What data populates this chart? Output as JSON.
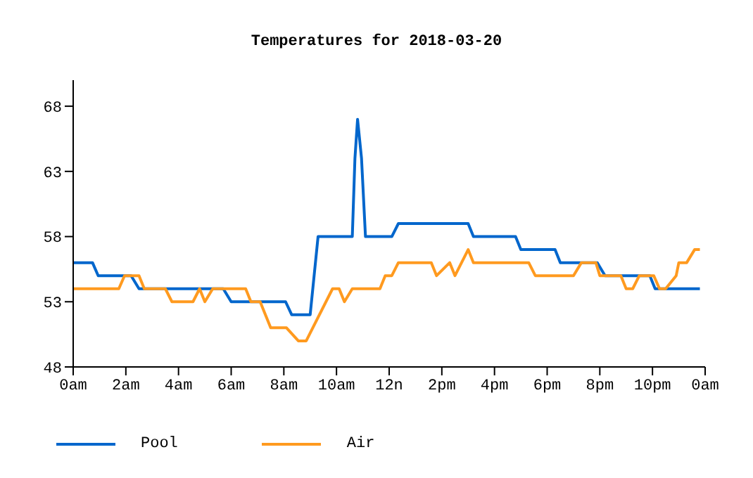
{
  "chart_data": {
    "type": "line",
    "title": "Temperatures for 2018-03-20",
    "xlim": [
      "2018-03-20T00:00",
      "2018-03-21T00:00"
    ],
    "xticks": [
      {
        "value": "2018-03-20T00:00",
        "label": "0am"
      },
      {
        "value": "2018-03-20T02:00",
        "label": "2am"
      },
      {
        "value": "2018-03-20T04:00",
        "label": "4am"
      },
      {
        "value": "2018-03-20T06:00",
        "label": "6am"
      },
      {
        "value": "2018-03-20T08:00",
        "label": "8am"
      },
      {
        "value": "2018-03-20T10:00",
        "label": "10am"
      },
      {
        "value": "2018-03-20T12:00",
        "label": "12n"
      },
      {
        "value": "2018-03-20T14:00",
        "label": "2pm"
      },
      {
        "value": "2018-03-20T16:00",
        "label": "4pm"
      },
      {
        "value": "2018-03-20T18:00",
        "label": "6pm"
      },
      {
        "value": "2018-03-20T20:00",
        "label": "8pm"
      },
      {
        "value": "2018-03-20T22:00",
        "label": "10pm"
      },
      {
        "value": "2018-03-21T00:00",
        "label": "0am"
      }
    ],
    "ylim": [
      48,
      70
    ],
    "yticks": [
      48,
      53,
      58,
      63,
      68
    ],
    "grid": false,
    "legend": "bottom left",
    "marker": "none",
    "line_style": "solid",
    "series": [
      {
        "name": "Pool",
        "color": "#0066cc",
        "x": [
          "2018-03-20T00:00",
          "2018-03-20T00:44",
          "2018-03-20T00:57",
          "2018-03-20T02:12",
          "2018-03-20T02:30",
          "2018-03-20T05:42",
          "2018-03-20T06:00",
          "2018-03-20T08:04",
          "2018-03-20T08:18",
          "2018-03-20T09:00",
          "2018-03-20T09:18",
          "2018-03-20T10:36",
          "2018-03-20T10:42",
          "2018-03-20T10:48",
          "2018-03-20T10:57",
          "2018-03-20T11:06",
          "2018-03-20T12:06",
          "2018-03-20T12:21",
          "2018-03-20T15:00",
          "2018-03-20T15:12",
          "2018-03-20T16:48",
          "2018-03-20T17:00",
          "2018-03-20T18:18",
          "2018-03-20T18:30",
          "2018-03-20T19:54",
          "2018-03-20T20:12",
          "2018-03-20T21:54",
          "2018-03-20T22:06",
          "2018-03-20T23:48"
        ],
        "values": [
          56,
          56,
          55,
          55,
          54,
          54,
          53,
          53,
          52,
          52,
          58,
          58,
          64,
          67,
          64,
          58,
          58,
          59,
          59,
          58,
          58,
          57,
          57,
          56,
          56,
          55,
          55,
          54,
          54
        ]
      },
      {
        "name": "Air",
        "color": "#ff9a1f",
        "x": [
          "2018-03-20T00:00",
          "2018-03-20T01:44",
          "2018-03-20T01:57",
          "2018-03-20T02:30",
          "2018-03-20T02:42",
          "2018-03-20T03:30",
          "2018-03-20T03:45",
          "2018-03-20T04:33",
          "2018-03-20T04:48",
          "2018-03-20T05:00",
          "2018-03-20T05:18",
          "2018-03-20T06:33",
          "2018-03-20T06:45",
          "2018-03-20T07:06",
          "2018-03-20T07:30",
          "2018-03-20T08:06",
          "2018-03-20T08:33",
          "2018-03-20T08:51",
          "2018-03-20T09:51",
          "2018-03-20T10:06",
          "2018-03-20T10:18",
          "2018-03-20T10:36",
          "2018-03-20T11:39",
          "2018-03-20T11:51",
          "2018-03-20T12:06",
          "2018-03-20T12:21",
          "2018-03-20T13:36",
          "2018-03-20T13:48",
          "2018-03-20T14:18",
          "2018-03-20T14:30",
          "2018-03-20T15:00",
          "2018-03-20T15:12",
          "2018-03-20T17:18",
          "2018-03-20T17:33",
          "2018-03-20T19:00",
          "2018-03-20T19:18",
          "2018-03-20T19:51",
          "2018-03-20T20:00",
          "2018-03-20T20:48",
          "2018-03-20T21:00",
          "2018-03-20T21:15",
          "2018-03-20T21:30",
          "2018-03-20T22:03",
          "2018-03-20T22:16",
          "2018-03-20T22:30",
          "2018-03-20T22:54",
          "2018-03-20T23:00",
          "2018-03-20T23:18",
          "2018-03-20T23:36",
          "2018-03-20T23:48"
        ],
        "values": [
          54,
          54,
          55,
          55,
          54,
          54,
          53,
          53,
          54,
          53,
          54,
          54,
          53,
          53,
          51,
          51,
          50,
          50,
          54,
          54,
          53,
          54,
          54,
          55,
          55,
          56,
          56,
          55,
          56,
          55,
          57,
          56,
          56,
          55,
          55,
          56,
          56,
          55,
          55,
          54,
          54,
          55,
          55,
          54,
          54,
          55,
          56,
          56,
          57,
          57
        ]
      }
    ]
  }
}
